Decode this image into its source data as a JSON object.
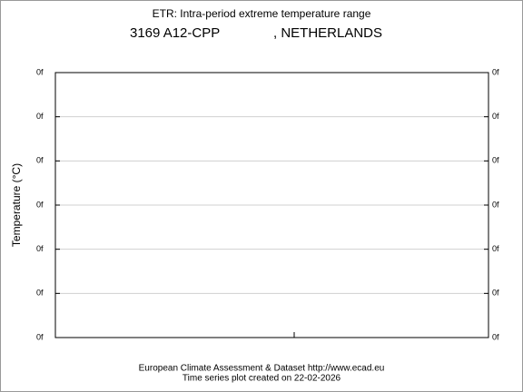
{
  "chart_data": {
    "type": "line",
    "title": "ETR: Intra-period extreme temperature range",
    "station": "3169 A12-CPP",
    "country": ", NETHERLANDS",
    "ylabel": "Temperature (°C)",
    "left_tick_labels": [
      "0f",
      "0f",
      "0f",
      "0f",
      "0f",
      "0f",
      "0f"
    ],
    "right_tick_labels": [
      "0f",
      "0f",
      "0f",
      "0f",
      "0f",
      "0f",
      "0f"
    ],
    "grid": true,
    "footer": [
      "European Climate Assessment & Dataset  http://www.ecad.eu",
      "Time series plot created on 22-02-2026"
    ]
  }
}
